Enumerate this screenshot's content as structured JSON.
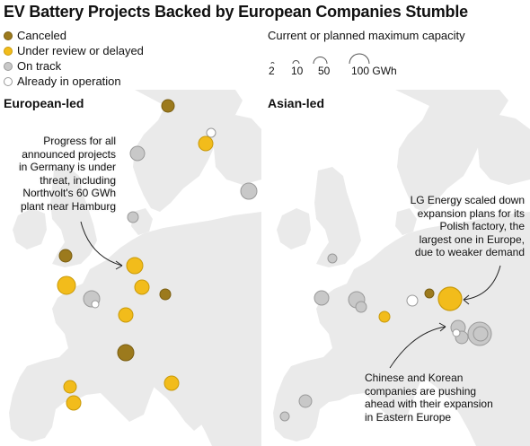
{
  "title": "EV Battery Projects Backed by European Companies Stumble",
  "legend": {
    "items": [
      {
        "label": "Canceled",
        "color": "#9c7a1d",
        "stroke": "#7a5e12"
      },
      {
        "label": "Under review or delayed",
        "color": "#f2bc1b",
        "stroke": "#c99a0a"
      },
      {
        "label": "On track",
        "color": "#c8c8c8",
        "stroke": "#9a9a9a"
      },
      {
        "label": "Already in operation",
        "color": "#ffffff",
        "stroke": "#9a9a9a"
      }
    ]
  },
  "capacity_legend": {
    "title": "Current or planned maximum capacity",
    "scale": [
      {
        "label": "2",
        "gwh": 2
      },
      {
        "label": "10",
        "gwh": 10
      },
      {
        "label": "50",
        "gwh": 50
      },
      {
        "label": "100 GWh",
        "gwh": 100
      }
    ]
  },
  "panels": {
    "european": {
      "title": "European-led",
      "annotation": [
        "Progress for all",
        "announced projects",
        "in Germany is under",
        "threat, including",
        "Northvolt's 60 GWh",
        "plant near Hamburg"
      ]
    },
    "asian": {
      "title": "Asian-led",
      "annotation_lg": [
        "LG Energy scaled down",
        "expansion plans for its",
        "Polish factory, the",
        "largest one in Europe,",
        "due to weaker demand"
      ],
      "annotation_cn": [
        "Chinese and Korean",
        "companies are pushing",
        "ahead with their expansion",
        "in Eastern Europe"
      ]
    }
  },
  "colors": {
    "map_land": "#eaeaea",
    "map_water": "#ffffff",
    "canceled": "#9c7a1d",
    "under_review": "#f2bc1b",
    "on_track": "#c8c8c8",
    "operating": "#ffffff"
  }
}
